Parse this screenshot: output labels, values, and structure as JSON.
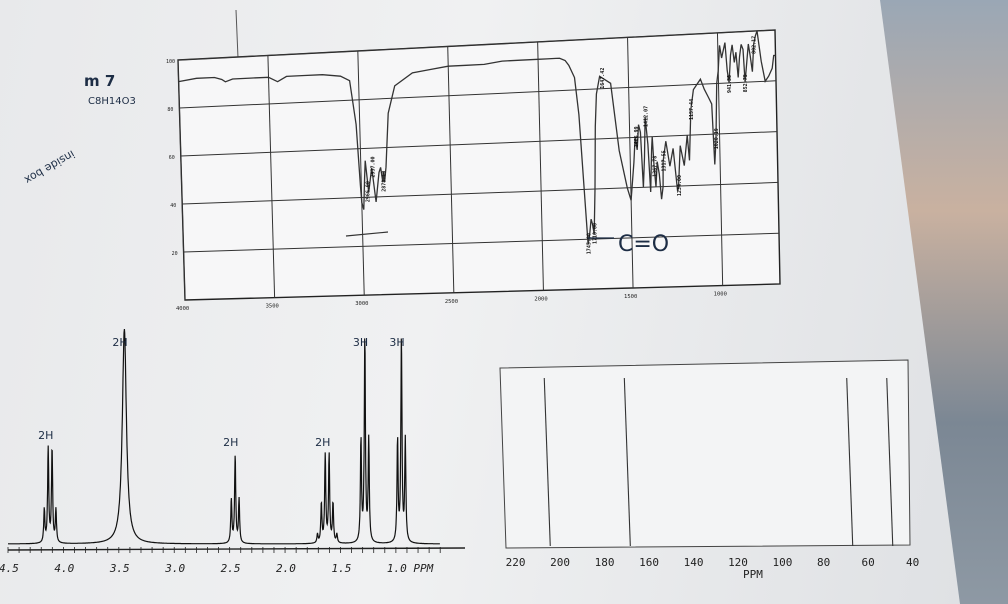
{
  "worksheet": {
    "problem_heading": "m 7",
    "formula": "C8H14O3",
    "side_note": "inside box"
  },
  "chart_data": [
    {
      "type": "line",
      "title": "",
      "x_axis": {
        "ticks": [
          "4000",
          "3500",
          "3000",
          "2500",
          "2000",
          "1500",
          "1000"
        ],
        "reversed": true,
        "xlim": [
          4000,
          680
        ]
      },
      "y_axis": {
        "ticks": [
          "100",
          "80",
          "60",
          "40",
          "20"
        ],
        "ylim": [
          0,
          100
        ]
      },
      "grid": true,
      "series": [
        {
          "x": [
            4000,
            3900,
            3800,
            3760,
            3740,
            3700,
            3600,
            3500,
            3450,
            3400,
            3300,
            3200,
            3100,
            3050,
            3020,
            3005,
            3000,
            2990,
            2981,
            2975,
            2960,
            2940,
            2920,
            2900,
            2890,
            2880,
            2875,
            2870,
            2860,
            2840,
            2800,
            2700,
            2600,
            2500,
            2400,
            2300,
            2200,
            2100,
            2000,
            1950,
            1900,
            1880,
            1850,
            1830,
            1800,
            1780,
            1760,
            1745,
            1735,
            1725,
            1718,
            1710,
            1700,
            1690,
            1680,
            1660,
            1640,
            1600,
            1560,
            1520,
            1500,
            1480,
            1470,
            1460,
            1450,
            1440,
            1430,
            1420,
            1412,
            1400,
            1390,
            1380,
            1375,
            1368,
            1360,
            1350,
            1340,
            1330,
            1320,
            1317,
            1300,
            1280,
            1260,
            1240,
            1234,
            1220,
            1200,
            1180,
            1170,
            1157,
            1140,
            1120,
            1100,
            1080,
            1060,
            1040,
            1030,
            1020,
            1010,
            1000,
            990,
            980,
            960,
            950,
            941,
            930,
            920,
            910,
            900,
            890,
            880,
            870,
            860,
            852,
            840,
            830,
            820,
            810,
            800,
            790,
            780,
            760,
            740,
            720,
            700,
            690,
            680
          ],
          "y": [
            91,
            92,
            92,
            91,
            90,
            91,
            91,
            91,
            89,
            91,
            91,
            91,
            90,
            88,
            70,
            45,
            38,
            35,
            48,
            55,
            42,
            52,
            38,
            50,
            52,
            46,
            50,
            46,
            52,
            74,
            85,
            90,
            91,
            92,
            92,
            92,
            93,
            93,
            93,
            93,
            93,
            93,
            92,
            90,
            85,
            70,
            40,
            18,
            22,
            28,
            26,
            22,
            40,
            65,
            78,
            85,
            84,
            82,
            55,
            40,
            35,
            50,
            60,
            55,
            65,
            62,
            40,
            52,
            68,
            57,
            38,
            55,
            60,
            48,
            40,
            50,
            45,
            35,
            40,
            50,
            58,
            48,
            55,
            38,
            40,
            56,
            48,
            60,
            50,
            70,
            78,
            80,
            82,
            78,
            75,
            72,
            48,
            58,
            80,
            85,
            95,
            90,
            96,
            85,
            80,
            91,
            95,
            88,
            92,
            82,
            90,
            95,
            93,
            80,
            88,
            95,
            90,
            84,
            95,
            98,
            100,
            88,
            80,
            82,
            85,
            90,
            90
          ]
        }
      ],
      "peak_labels": [
        "2966.90",
        "2937.00",
        "2878.10",
        "1745.00",
        "1710.00",
        "1647.42",
        "1466.99",
        "1412.07",
        "1367.78",
        "1317.55",
        "1234.00",
        "1157.44",
        "1020.19",
        "941.38",
        "852.75",
        "802.17"
      ],
      "annotation": "C=O"
    },
    {
      "type": "line",
      "title": "",
      "x_axis": {
        "ticks": [
          "4.5",
          "4.0",
          "3.5",
          "3.0",
          "2.5",
          "2.0",
          "1.5",
          "1.0 PPM"
        ],
        "unit_label": "PPM",
        "reversed": true,
        "xlim": [
          4.5,
          0.5
        ]
      },
      "peaks": [
        {
          "shift": 4.12,
          "multiplicity": "quartet",
          "integration": "2H"
        },
        {
          "shift": 3.45,
          "multiplicity": "singlet",
          "integration": "2H"
        },
        {
          "shift": 2.45,
          "multiplicity": "triplet",
          "integration": "2H"
        },
        {
          "shift": 1.62,
          "multiplicity": "sextet",
          "integration": "2H"
        },
        {
          "shift": 1.28,
          "multiplicity": "triplet",
          "integration": "3H"
        },
        {
          "shift": 0.95,
          "multiplicity": "triplet",
          "integration": "3H"
        }
      ]
    },
    {
      "type": "line",
      "title": "",
      "x_axis": {
        "ticks": [
          "220",
          "200",
          "180",
          "160",
          "140",
          "120",
          "100",
          "80",
          "60",
          "40"
        ],
        "unit_label": "PPM",
        "reversed": true,
        "xlim": [
          223,
          40
        ]
      },
      "peaks": [
        {
          "shift": 204
        },
        {
          "shift": 168
        },
        {
          "shift": 68
        },
        {
          "shift": 50
        }
      ]
    }
  ]
}
